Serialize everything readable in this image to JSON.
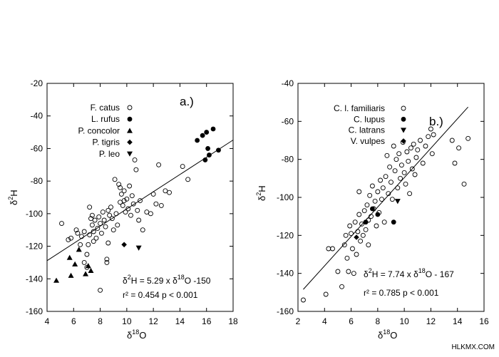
{
  "watermark": "HLKMX.COM",
  "chart_data": [
    {
      "type": "scatter",
      "panel_label": "a.)",
      "xlabel_base": "δ",
      "xlabel_sup": "18",
      "xlabel_rest": "O",
      "ylabel_base": "δ",
      "ylabel_sup": "2",
      "ylabel_rest": "H",
      "xlim": [
        4,
        18
      ],
      "ylim": [
        -160,
        -20
      ],
      "xticks": [
        4,
        6,
        8,
        10,
        12,
        14,
        16,
        18
      ],
      "yticks": [
        -160,
        -140,
        -120,
        -100,
        -80,
        -60,
        -40,
        -20
      ],
      "grid": false,
      "legend_position": "top-left",
      "equation": {
        "prefix": "δ",
        "sup1": "2",
        "mid": "H = 5.29 x δ",
        "sup2": "18",
        "suffix": "O -150"
      },
      "stats": "r² = 0.454 p < 0.001",
      "fit_line": {
        "slope": 5.29,
        "intercept": -150,
        "x_range": [
          4,
          18
        ]
      },
      "series": [
        {
          "name": "F. catus",
          "marker": "open-circle",
          "points": [
            [
              5.1,
              -106
            ],
            [
              5.6,
              -116
            ],
            [
              5.8,
              -115
            ],
            [
              6.2,
              -110
            ],
            [
              6.3,
              -112
            ],
            [
              6.5,
              -119
            ],
            [
              6.6,
              -114
            ],
            [
              6.8,
              -130
            ],
            [
              7.0,
              -133
            ],
            [
              7.0,
              -125
            ],
            [
              7.1,
              -119
            ],
            [
              7.2,
              -113
            ],
            [
              7.3,
              -103
            ],
            [
              7.4,
              -101
            ],
            [
              7.4,
              -107
            ],
            [
              7.5,
              -117
            ],
            [
              7.5,
              -111
            ],
            [
              7.6,
              -104
            ],
            [
              7.7,
              -115
            ],
            [
              7.8,
              -109
            ],
            [
              7.9,
              -102
            ],
            [
              8.0,
              -106
            ],
            [
              8.0,
              -147
            ],
            [
              8.1,
              -112
            ],
            [
              8.2,
              -99
            ],
            [
              8.3,
              -104
            ],
            [
              8.4,
              -108
            ],
            [
              8.5,
              -128
            ],
            [
              8.5,
              -130
            ],
            [
              8.6,
              -98
            ],
            [
              8.7,
              -101
            ],
            [
              8.8,
              -96
            ],
            [
              8.9,
              -103
            ],
            [
              9.0,
              -110
            ],
            [
              9.1,
              -79
            ],
            [
              9.2,
              -100
            ],
            [
              9.3,
              -107
            ],
            [
              9.4,
              -82
            ],
            [
              9.5,
              -93
            ],
            [
              9.5,
              -84
            ],
            [
              9.6,
              -88
            ],
            [
              9.7,
              -95
            ],
            [
              9.8,
              -86
            ],
            [
              9.9,
              -99
            ],
            [
              10.0,
              -91
            ],
            [
              10.1,
              -97
            ],
            [
              10.2,
              -83
            ],
            [
              10.3,
              -101
            ],
            [
              10.4,
              -89
            ],
            [
              10.5,
              -94
            ],
            [
              10.6,
              -67
            ],
            [
              10.7,
              -73
            ],
            [
              10.8,
              -98
            ],
            [
              10.9,
              -104
            ],
            [
              11.0,
              -92
            ],
            [
              11.2,
              -110
            ],
            [
              11.5,
              -99
            ],
            [
              11.8,
              -100
            ],
            [
              12.0,
              -88
            ],
            [
              12.2,
              -94
            ],
            [
              12.4,
              -70
            ],
            [
              12.6,
              -95
            ],
            [
              12.9,
              -86
            ],
            [
              13.2,
              -87
            ],
            [
              14.2,
              -71
            ],
            [
              14.6,
              -79
            ],
            [
              6.8,
              -111
            ],
            [
              7.2,
              -96
            ],
            [
              8.6,
              -118
            ],
            [
              9.8,
              -92
            ]
          ]
        },
        {
          "name": "L. rufus",
          "marker": "filled-circle",
          "points": [
            [
              15.3,
              -55
            ],
            [
              15.7,
              -52
            ],
            [
              16.0,
              -50
            ],
            [
              16.1,
              -60
            ],
            [
              16.2,
              -64
            ],
            [
              16.5,
              -48
            ],
            [
              16.9,
              -61
            ],
            [
              15.9,
              -67
            ]
          ]
        },
        {
          "name": "P. concolor",
          "marker": "triangle-up",
          "points": [
            [
              4.7,
              -141
            ],
            [
              5.7,
              -127
            ],
            [
              5.8,
              -138
            ],
            [
              6.1,
              -131
            ],
            [
              6.4,
              -122
            ],
            [
              6.9,
              -137
            ],
            [
              7.1,
              -132
            ],
            [
              7.3,
              -135
            ]
          ]
        },
        {
          "name": "P. tigris",
          "marker": "diamond",
          "points": [
            [
              9.8,
              -119
            ]
          ]
        },
        {
          "name": "P. leo",
          "marker": "triangle-down",
          "points": [
            [
              10.9,
              -121
            ]
          ]
        }
      ]
    },
    {
      "type": "scatter",
      "panel_label": "b.)",
      "xlabel_base": "δ",
      "xlabel_sup": "18",
      "xlabel_rest": "O",
      "ylabel_base": "δ",
      "ylabel_sup": "2",
      "ylabel_rest": "H",
      "xlim": [
        2,
        16
      ],
      "ylim": [
        -160,
        -40
      ],
      "xticks": [
        2,
        4,
        6,
        8,
        10,
        12,
        14,
        16
      ],
      "yticks": [
        -160,
        -140,
        -120,
        -100,
        -80,
        -60,
        -40
      ],
      "grid": false,
      "legend_position": "top-left",
      "equation": {
        "prefix": "δ",
        "sup1": "2",
        "mid": "H = 7.74 x δ",
        "sup2": "18",
        "suffix": "O  - 167"
      },
      "stats": "r² = 0.785 p < 0.001",
      "fit_line": {
        "slope": 7.74,
        "intercept": -167,
        "x_range": [
          2.4,
          14.8
        ]
      },
      "series": [
        {
          "name": "C. l. familiaris",
          "marker": "open-circle",
          "points": [
            [
              2.4,
              -154
            ],
            [
              4.1,
              -151
            ],
            [
              4.3,
              -127
            ],
            [
              4.6,
              -127
            ],
            [
              5.0,
              -139
            ],
            [
              5.3,
              -147
            ],
            [
              5.5,
              -125
            ],
            [
              5.7,
              -132
            ],
            [
              5.8,
              -139
            ],
            [
              5.9,
              -115
            ],
            [
              6.0,
              -119
            ],
            [
              6.1,
              -127
            ],
            [
              6.2,
              -140
            ],
            [
              6.3,
              -113
            ],
            [
              6.4,
              -130
            ],
            [
              6.5,
              -118
            ],
            [
              6.6,
              -109
            ],
            [
              6.7,
              -123
            ],
            [
              6.8,
              -114
            ],
            [
              6.9,
              -120
            ],
            [
              7.0,
              -107
            ],
            [
              7.1,
              -117
            ],
            [
              7.2,
              -104
            ],
            [
              7.3,
              -112
            ],
            [
              7.4,
              -99
            ],
            [
              7.5,
              -110
            ],
            [
              7.6,
              -94
            ],
            [
              7.7,
              -106
            ],
            [
              7.8,
              -102
            ],
            [
              7.9,
              -115
            ],
            [
              8.0,
              -97
            ],
            [
              8.1,
              -108
            ],
            [
              8.2,
              -91
            ],
            [
              8.3,
              -101
            ],
            [
              8.4,
              -95
            ],
            [
              8.5,
              -113
            ],
            [
              8.6,
              -89
            ],
            [
              8.7,
              -78
            ],
            [
              8.8,
              -98
            ],
            [
              8.9,
              -84
            ],
            [
              9.0,
              -92
            ],
            [
              9.1,
              -101
            ],
            [
              9.2,
              -73
            ],
            [
              9.3,
              -86
            ],
            [
              9.4,
              -80
            ],
            [
              9.5,
              -95
            ],
            [
              9.6,
              -77
            ],
            [
              9.7,
              -90
            ],
            [
              9.8,
              -83
            ],
            [
              9.9,
              -71
            ],
            [
              10.0,
              -87
            ],
            [
              10.1,
              -93
            ],
            [
              10.2,
              -76
            ],
            [
              10.3,
              -81
            ],
            [
              10.4,
              -98
            ],
            [
              10.5,
              -74
            ],
            [
              10.6,
              -85
            ],
            [
              10.7,
              -72
            ],
            [
              10.8,
              -88
            ],
            [
              10.9,
              -79
            ],
            [
              11.0,
              -75
            ],
            [
              11.2,
              -70
            ],
            [
              11.4,
              -82
            ],
            [
              11.6,
              -73
            ],
            [
              11.8,
              -68
            ],
            [
              12.0,
              -64
            ],
            [
              12.1,
              -77
            ],
            [
              12.2,
              -67
            ],
            [
              13.6,
              -70
            ],
            [
              13.8,
              -82
            ],
            [
              14.1,
              -74
            ],
            [
              14.5,
              -93
            ],
            [
              14.8,
              -69
            ],
            [
              6.6,
              -97
            ],
            [
              7.3,
              -125
            ],
            [
              5.6,
              -120
            ]
          ]
        },
        {
          "name": "C. lupus",
          "marker": "filled-circle",
          "points": [
            [
              7.1,
              -113
            ],
            [
              8.0,
              -109
            ],
            [
              9.2,
              -113
            ],
            [
              7.6,
              -106
            ]
          ]
        },
        {
          "name": "C. latrans",
          "marker": "triangle-down",
          "points": [
            [
              9.5,
              -102
            ]
          ]
        },
        {
          "name": "V. vulpes",
          "marker": "diamond",
          "points": [
            [
              6.4,
              -121
            ]
          ]
        }
      ]
    }
  ]
}
